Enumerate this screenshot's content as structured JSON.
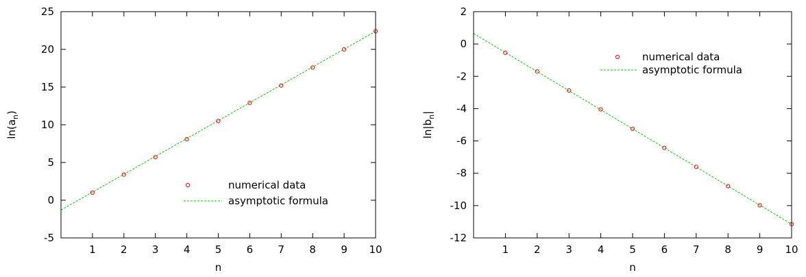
{
  "colors": {
    "points": "#ff0000",
    "line": "#00cc00",
    "axes": "#000000"
  },
  "chart_data": [
    {
      "type": "scatter",
      "xlabel": "n",
      "ylabel_base": "ln(a",
      "ylabel_sub": "n",
      "ylabel_end": ")",
      "xlim": [
        0,
        10
      ],
      "ylim": [
        -5,
        25
      ],
      "xticks": [
        "1",
        "2",
        "3",
        "4",
        "5",
        "6",
        "7",
        "8",
        "9",
        "10"
      ],
      "yticks": [
        "-5",
        "0",
        "5",
        "10",
        "15",
        "20",
        "25"
      ],
      "legend_position": "bottom-right",
      "grid": false,
      "series": [
        {
          "name": "numerical data",
          "style": "points",
          "x": [
            1,
            2,
            3,
            4,
            5,
            6,
            7,
            8,
            9,
            10
          ],
          "y": [
            1.0,
            3.4,
            5.7,
            8.1,
            10.5,
            12.9,
            15.2,
            17.6,
            20.0,
            22.4
          ]
        },
        {
          "name": "asymptotic formula",
          "style": "dashed-line",
          "x": [
            0,
            10
          ],
          "y": [
            -1.3,
            22.4
          ]
        }
      ]
    },
    {
      "type": "scatter",
      "xlabel": "n",
      "ylabel_base": "ln|b",
      "ylabel_sub": "n",
      "ylabel_end": "|",
      "xlim": [
        0,
        10
      ],
      "ylim": [
        -12,
        2
      ],
      "xticks": [
        "1",
        "2",
        "3",
        "4",
        "5",
        "6",
        "7",
        "8",
        "9",
        "10"
      ],
      "yticks": [
        "-12",
        "-10",
        "-8",
        "-6",
        "-4",
        "-2",
        "0",
        "2"
      ],
      "legend_position": "top-right",
      "grid": false,
      "series": [
        {
          "name": "numerical data",
          "style": "points",
          "x": [
            1,
            2,
            3,
            4,
            5,
            6,
            7,
            8,
            9,
            10
          ],
          "y": [
            -0.55,
            -1.7,
            -2.88,
            -4.05,
            -5.25,
            -6.43,
            -7.6,
            -8.8,
            -9.98,
            -11.15
          ]
        },
        {
          "name": "asymptotic formula",
          "style": "dashed-line",
          "x": [
            0,
            10
          ],
          "y": [
            0.65,
            -11.15
          ]
        }
      ]
    }
  ]
}
